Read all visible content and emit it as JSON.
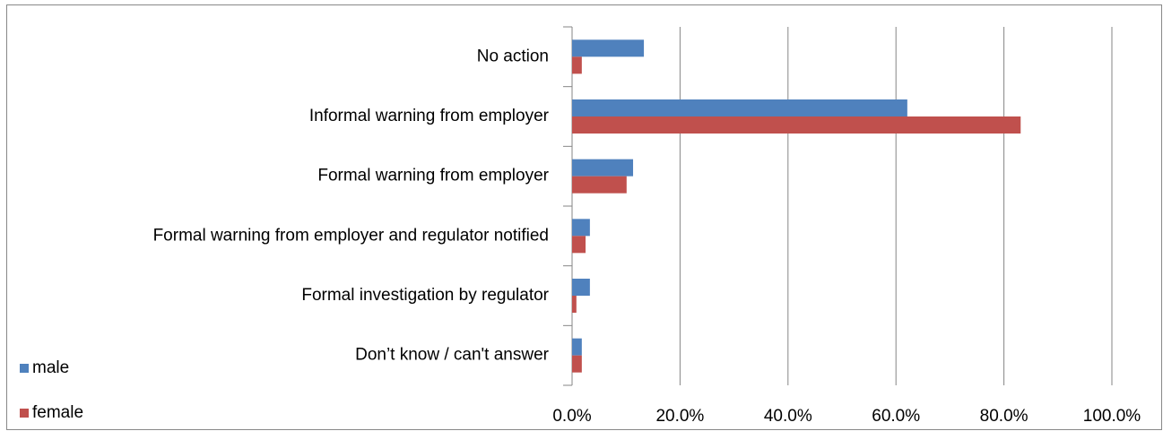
{
  "chart_data": {
    "type": "bar",
    "orientation": "horizontal",
    "categories": [
      "No action",
      "Informal warning from employer",
      "Formal warning from employer",
      "Formal warning from employer and regulator notified",
      "Formal investigation by regulator",
      "Don’t know / can't answer"
    ],
    "series": [
      {
        "name": "male",
        "color": "#4f81bd",
        "values": [
          13.3,
          62.1,
          11.3,
          3.3,
          3.3,
          1.8
        ]
      },
      {
        "name": "female",
        "color": "#c0504d",
        "values": [
          1.8,
          83.1,
          10.1,
          2.5,
          0.8,
          1.8
        ]
      }
    ],
    "xlim": [
      0,
      100
    ],
    "xticks": [
      {
        "value": 0,
        "label": "0.0%"
      },
      {
        "value": 20,
        "label": "20.0%"
      },
      {
        "value": 40,
        "label": "40.0%"
      },
      {
        "value": 60,
        "label": "60.0%"
      },
      {
        "value": 80,
        "label": "80.0%"
      },
      {
        "value": 100,
        "label": "100.0%"
      }
    ],
    "grid": true,
    "legend": "bottom-left"
  }
}
